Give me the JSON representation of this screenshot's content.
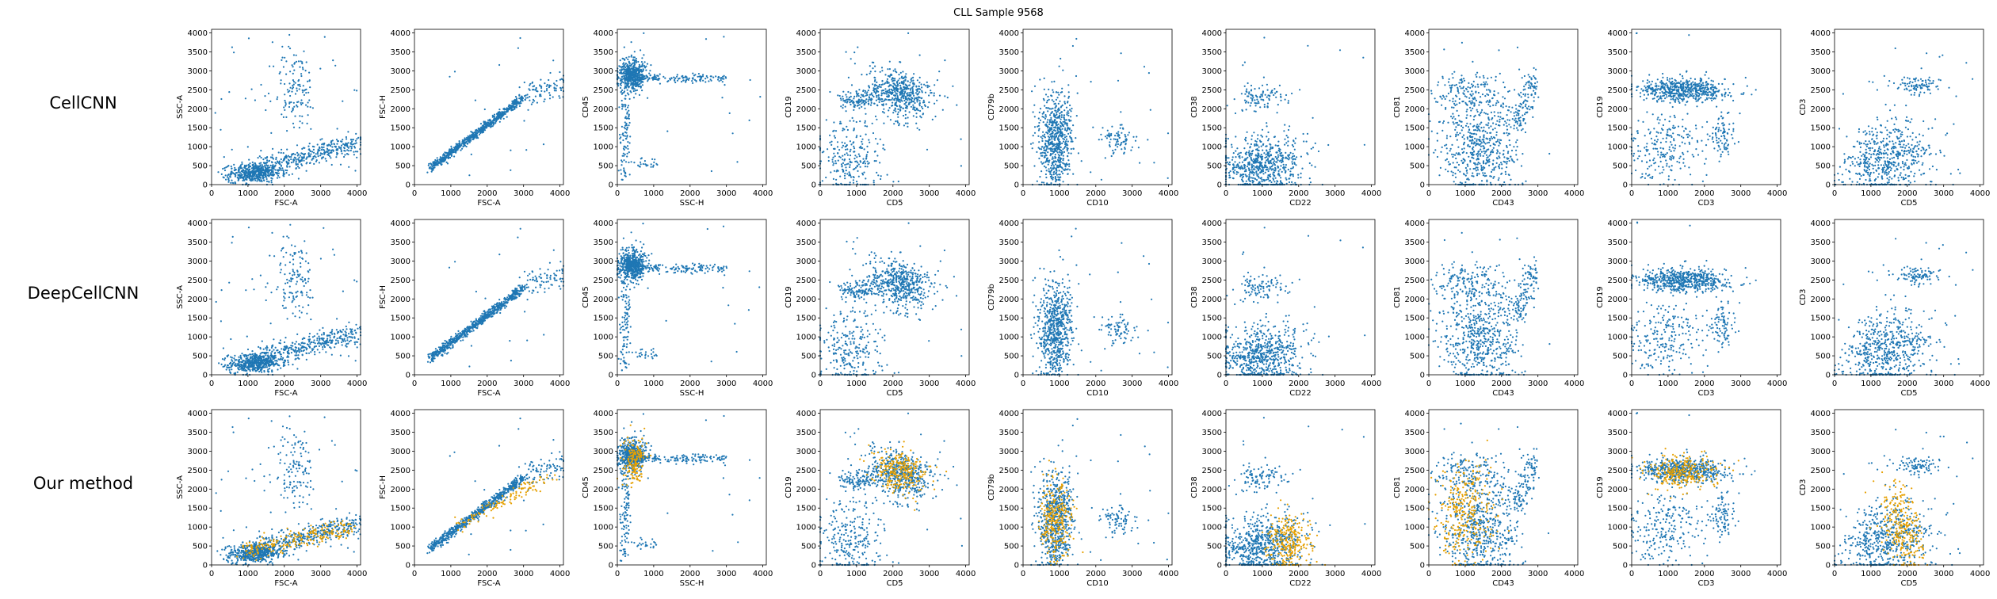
{
  "title": "CLL Sample 9568",
  "row_labels": [
    "CellCNN",
    "DeepCellCNN",
    "Our method"
  ],
  "colors": {
    "blue": "#1f77b4",
    "orange": "#e6a000"
  },
  "chart_data": {
    "type": "scatter",
    "rows": 3,
    "cols": 10,
    "xlim": [
      0,
      4096
    ],
    "ylim": [
      0,
      4096
    ],
    "ticks": [
      0,
      500,
      1000,
      1500,
      2000,
      2500,
      3000,
      3500,
      4000
    ],
    "xticks": [
      0,
      1000,
      2000,
      3000,
      4000
    ],
    "panels": [
      {
        "xlabel": "FSC-A",
        "ylabel": "SSC-A"
      },
      {
        "xlabel": "FSC-A",
        "ylabel": "FSC-H"
      },
      {
        "xlabel": "SSC-H",
        "ylabel": "CD45"
      },
      {
        "xlabel": "CD5",
        "ylabel": "CD19"
      },
      {
        "xlabel": "CD10",
        "ylabel": "CD79b"
      },
      {
        "xlabel": "CD22",
        "ylabel": "CD38"
      },
      {
        "xlabel": "CD43",
        "ylabel": "CD81"
      },
      {
        "xlabel": "CD3",
        "ylabel": "CD19"
      },
      {
        "xlabel": "CD5",
        "ylabel": "CD3"
      }
    ]
  }
}
